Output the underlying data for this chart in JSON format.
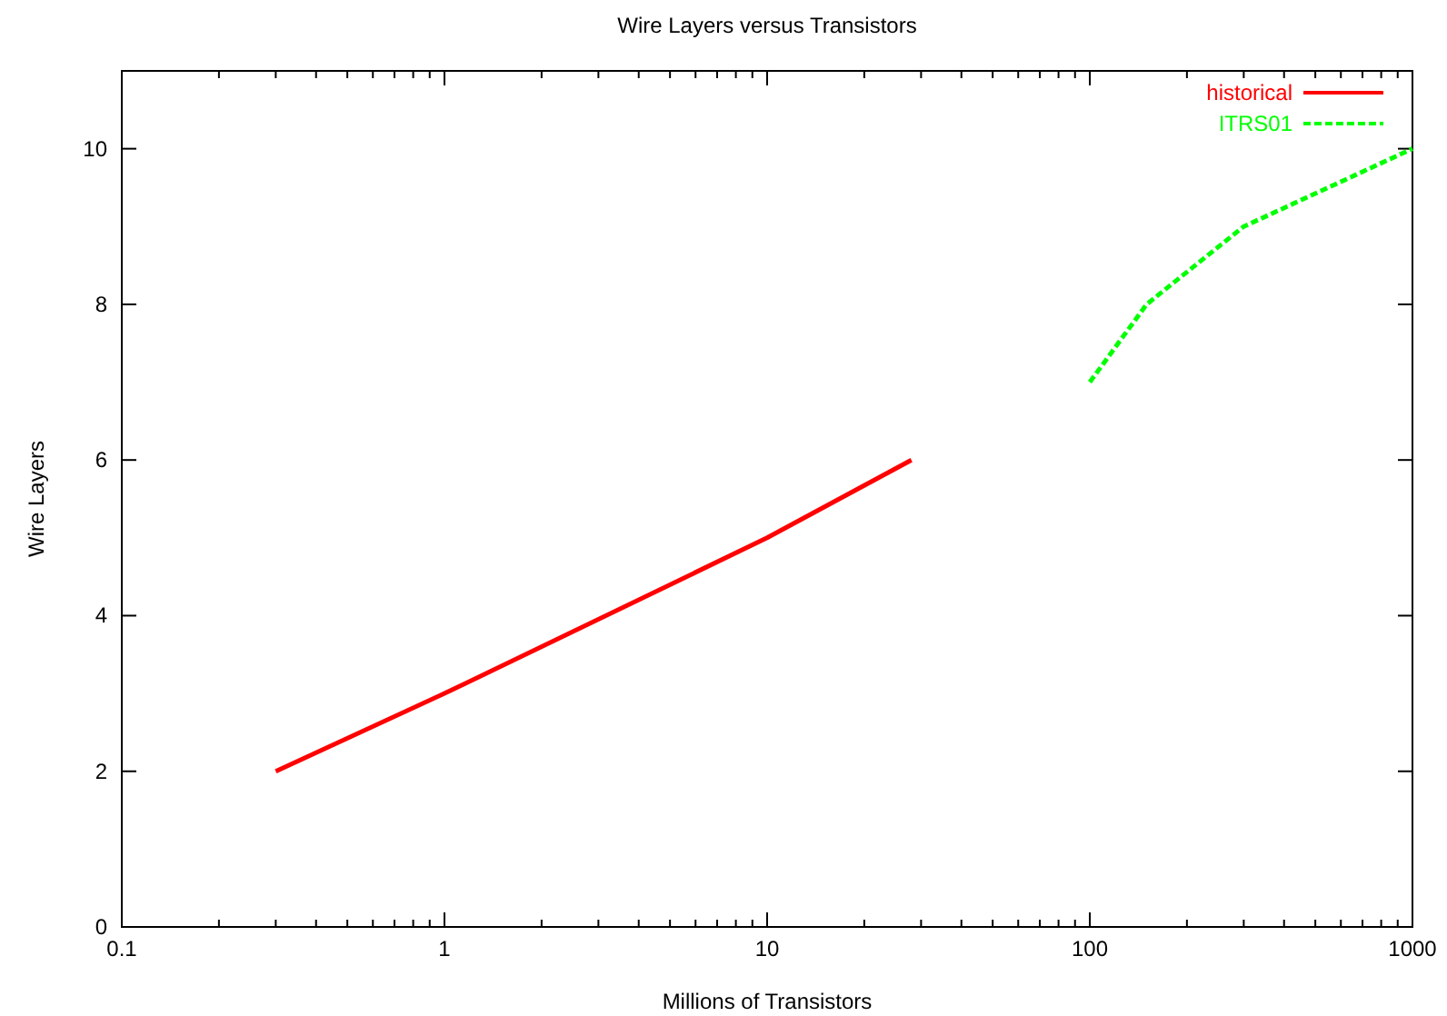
{
  "chart_data": {
    "type": "line",
    "title": "Wire Layers versus Transistors",
    "xlabel": "Millions of Transistors",
    "ylabel": "Wire Layers",
    "log": "x",
    "xlim": [
      0.1,
      1000
    ],
    "ylim": [
      0,
      11
    ],
    "xticks": [
      0.1,
      {
        "value": 0.2,
        "label": null
      },
      {
        "value": 0.3,
        "label": null
      },
      {
        "value": 0.4,
        "label": null
      },
      {
        "value": 0.5,
        "label": null
      },
      {
        "value": 0.6,
        "label": null
      },
      {
        "value": 0.7,
        "label": null
      },
      {
        "value": 0.8,
        "label": null
      },
      {
        "value": 0.9,
        "label": null
      },
      1,
      {
        "value": 2,
        "label": null
      },
      {
        "value": 3,
        "label": null
      },
      {
        "value": 4,
        "label": null
      },
      {
        "value": 5,
        "label": null
      },
      {
        "value": 6,
        "label": null
      },
      {
        "value": 7,
        "label": null
      },
      {
        "value": 8,
        "label": null
      },
      {
        "value": 9,
        "label": null
      },
      10,
      {
        "value": 20,
        "label": null
      },
      {
        "value": 30,
        "label": null
      },
      {
        "value": 40,
        "label": null
      },
      {
        "value": 50,
        "label": null
      },
      {
        "value": 60,
        "label": null
      },
      {
        "value": 70,
        "label": null
      },
      {
        "value": 80,
        "label": null
      },
      {
        "value": 90,
        "label": null
      },
      100,
      {
        "value": 200,
        "label": null
      },
      {
        "value": 300,
        "label": null
      },
      {
        "value": 400,
        "label": null
      },
      {
        "value": 500,
        "label": null
      },
      {
        "value": 600,
        "label": null
      },
      {
        "value": 700,
        "label": null
      },
      {
        "value": 800,
        "label": null
      },
      {
        "value": 900,
        "label": null
      },
      1000
    ],
    "yticks": [
      0,
      2,
      4,
      6,
      8,
      10
    ],
    "legend": "top right",
    "grid": false,
    "series": [
      {
        "name": "historical",
        "color": "#ff0000",
        "line_style": "solid",
        "x": [
          0.3,
          1,
          10,
          28
        ],
        "values": [
          2,
          3,
          5,
          6
        ]
      },
      {
        "name": "ITRS01",
        "color": "#00ff00",
        "line_style": "dashed",
        "x": [
          100,
          150,
          300,
          1000
        ],
        "values": [
          7,
          8,
          9,
          10
        ]
      }
    ]
  }
}
